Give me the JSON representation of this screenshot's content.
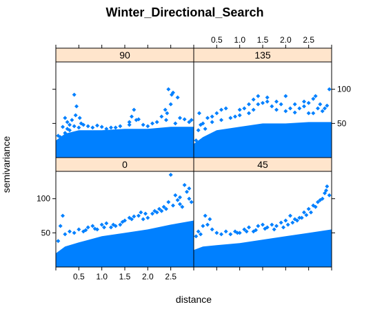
{
  "chart_data": {
    "type": "scatter",
    "title": "Winter_Directional_Search",
    "xlabel": "distance",
    "ylabel": "semivariance",
    "xlim": [
      0,
      3.0
    ],
    "ylim": [
      0,
      140
    ],
    "x_ticks": [
      0.5,
      1.0,
      1.5,
      2.0,
      2.5
    ],
    "x_tick_labels": [
      "0.5",
      "1.0",
      "1.5",
      "2.0",
      "2.5"
    ],
    "y_ticks": [
      50,
      100
    ],
    "y_tick_labels": [
      "50",
      "100"
    ],
    "layout": "2x2 panels",
    "point_color": "#0080ff",
    "strip_color": "#ffe5cc",
    "panels": [
      {
        "name": "90",
        "points": [
          [
            0.1,
            30
          ],
          [
            0.2,
            36
          ],
          [
            0.3,
            40
          ],
          [
            0.4,
            46
          ],
          [
            0.5,
            44
          ],
          [
            0.4,
            92
          ],
          [
            0.45,
            75
          ],
          [
            0.43,
            62
          ],
          [
            0.52,
            58
          ],
          [
            0.3,
            48
          ],
          [
            0.2,
            58
          ],
          [
            0.25,
            52
          ],
          [
            0.35,
            55
          ],
          [
            0.6,
            48
          ],
          [
            0.7,
            46
          ],
          [
            0.8,
            44
          ],
          [
            0.9,
            47
          ],
          [
            1.0,
            45
          ],
          [
            1.2,
            44
          ],
          [
            1.4,
            46
          ],
          [
            1.6,
            48
          ],
          [
            1.75,
            55
          ],
          [
            1.7,
            70
          ],
          [
            1.65,
            60
          ],
          [
            1.8,
            56
          ],
          [
            1.6,
            52
          ],
          [
            1.9,
            48
          ],
          [
            2.0,
            46
          ],
          [
            2.2,
            52
          ],
          [
            2.4,
            55
          ],
          [
            2.3,
            60
          ],
          [
            2.6,
            50
          ],
          [
            2.7,
            58
          ],
          [
            2.8,
            56
          ],
          [
            2.9,
            52
          ],
          [
            2.95,
            55
          ],
          [
            2.45,
            100
          ],
          [
            2.55,
            95
          ],
          [
            2.65,
            88
          ],
          [
            2.52,
            92
          ],
          [
            2.5,
            78
          ],
          [
            2.38,
            70
          ],
          [
            2.42,
            65
          ],
          [
            2.1,
            50
          ],
          [
            1.3,
            44
          ],
          [
            0.15,
            45
          ],
          [
            0.05,
            32
          ],
          [
            0.25,
            42
          ],
          [
            0.55,
            50
          ],
          [
            1.1,
            42
          ]
        ],
        "fill_band": [
          [
            0.0,
            0,
            25
          ],
          [
            0.2,
            0,
            35
          ],
          [
            0.5,
            0,
            40
          ],
          [
            1.0,
            0,
            40
          ],
          [
            1.5,
            0,
            42
          ],
          [
            2.0,
            0,
            42
          ],
          [
            2.5,
            0,
            45
          ],
          [
            3.0,
            0,
            45
          ]
        ]
      },
      {
        "name": "135",
        "points": [
          [
            0.05,
            25
          ],
          [
            0.1,
            40
          ],
          [
            0.12,
            65
          ],
          [
            0.2,
            50
          ],
          [
            0.3,
            58
          ],
          [
            0.4,
            60
          ],
          [
            0.5,
            65
          ],
          [
            0.6,
            70
          ],
          [
            0.7,
            72
          ],
          [
            0.9,
            60
          ],
          [
            1.0,
            70
          ],
          [
            1.1,
            72
          ],
          [
            1.2,
            78
          ],
          [
            1.3,
            85
          ],
          [
            1.4,
            90
          ],
          [
            1.5,
            80
          ],
          [
            1.6,
            82
          ],
          [
            1.7,
            75
          ],
          [
            1.8,
            70
          ],
          [
            1.9,
            78
          ],
          [
            2.0,
            68
          ],
          [
            2.1,
            72
          ],
          [
            2.2,
            66
          ],
          [
            2.3,
            72
          ],
          [
            2.4,
            75
          ],
          [
            2.5,
            80
          ],
          [
            2.6,
            86
          ],
          [
            2.65,
            90
          ],
          [
            2.7,
            72
          ],
          [
            2.75,
            78
          ],
          [
            2.8,
            68
          ],
          [
            2.85,
            72
          ],
          [
            2.95,
            100
          ],
          [
            2.9,
            76
          ],
          [
            2.6,
            65
          ],
          [
            2.4,
            82
          ],
          [
            2.2,
            78
          ],
          [
            2.0,
            90
          ],
          [
            1.8,
            82
          ],
          [
            1.6,
            88
          ],
          [
            1.4,
            78
          ],
          [
            1.2,
            65
          ],
          [
            1.0,
            62
          ],
          [
            0.8,
            58
          ],
          [
            0.6,
            55
          ],
          [
            0.4,
            52
          ],
          [
            0.25,
            42
          ],
          [
            0.15,
            48
          ],
          [
            2.5,
            65
          ],
          [
            1.3,
            70
          ]
        ],
        "fill_band": [
          [
            0.0,
            0,
            20
          ],
          [
            0.2,
            0,
            30
          ],
          [
            0.5,
            0,
            40
          ],
          [
            1.0,
            0,
            45
          ],
          [
            1.5,
            0,
            50
          ],
          [
            2.0,
            0,
            50
          ],
          [
            2.5,
            0,
            52
          ],
          [
            3.0,
            0,
            52
          ]
        ]
      },
      {
        "name": "0",
        "points": [
          [
            0.05,
            38
          ],
          [
            0.1,
            60
          ],
          [
            0.15,
            75
          ],
          [
            0.2,
            48
          ],
          [
            0.3,
            52
          ],
          [
            0.4,
            50
          ],
          [
            0.5,
            55
          ],
          [
            0.6,
            52
          ],
          [
            0.7,
            58
          ],
          [
            0.8,
            60
          ],
          [
            0.9,
            55
          ],
          [
            1.0,
            62
          ],
          [
            1.1,
            64
          ],
          [
            1.2,
            58
          ],
          [
            1.3,
            60
          ],
          [
            1.4,
            62
          ],
          [
            1.5,
            68
          ],
          [
            1.6,
            72
          ],
          [
            1.7,
            74
          ],
          [
            1.8,
            75
          ],
          [
            1.9,
            70
          ],
          [
            2.0,
            72
          ],
          [
            2.1,
            78
          ],
          [
            2.2,
            80
          ],
          [
            2.3,
            82
          ],
          [
            2.4,
            85
          ],
          [
            2.5,
            135
          ],
          [
            2.6,
            105
          ],
          [
            2.7,
            92
          ],
          [
            2.8,
            120
          ],
          [
            2.85,
            110
          ],
          [
            2.9,
            100
          ],
          [
            2.95,
            95
          ],
          [
            2.75,
            88
          ],
          [
            2.65,
            98
          ],
          [
            2.55,
            90
          ],
          [
            2.45,
            95
          ],
          [
            2.35,
            88
          ],
          [
            2.25,
            85
          ],
          [
            2.15,
            82
          ],
          [
            1.95,
            78
          ],
          [
            1.85,
            80
          ],
          [
            1.65,
            70
          ],
          [
            1.45,
            66
          ],
          [
            1.25,
            62
          ],
          [
            1.05,
            58
          ],
          [
            0.85,
            56
          ],
          [
            0.65,
            54
          ],
          [
            2.9,
            115
          ],
          [
            2.7,
            102
          ]
        ],
        "fill_band": [
          [
            0.0,
            0,
            20
          ],
          [
            0.2,
            0,
            30
          ],
          [
            0.5,
            0,
            36
          ],
          [
            1.0,
            0,
            45
          ],
          [
            1.5,
            0,
            50
          ],
          [
            2.0,
            0,
            55
          ],
          [
            2.5,
            0,
            62
          ],
          [
            3.0,
            0,
            68
          ]
        ]
      },
      {
        "name": "45",
        "points": [
          [
            0.05,
            45
          ],
          [
            0.1,
            52
          ],
          [
            0.15,
            48
          ],
          [
            0.2,
            60
          ],
          [
            0.3,
            62
          ],
          [
            0.4,
            55
          ],
          [
            0.5,
            50
          ],
          [
            0.6,
            48
          ],
          [
            0.7,
            52
          ],
          [
            0.8,
            48
          ],
          [
            0.9,
            52
          ],
          [
            1.0,
            50
          ],
          [
            1.1,
            55
          ],
          [
            1.2,
            58
          ],
          [
            1.3,
            52
          ],
          [
            1.4,
            60
          ],
          [
            1.5,
            62
          ],
          [
            1.6,
            58
          ],
          [
            1.7,
            62
          ],
          [
            1.8,
            60
          ],
          [
            1.9,
            65
          ],
          [
            2.0,
            68
          ],
          [
            2.1,
            75
          ],
          [
            2.2,
            70
          ],
          [
            2.3,
            72
          ],
          [
            2.4,
            80
          ],
          [
            2.5,
            85
          ],
          [
            2.6,
            90
          ],
          [
            2.7,
            95
          ],
          [
            2.8,
            100
          ],
          [
            2.85,
            108
          ],
          [
            2.9,
            118
          ],
          [
            2.95,
            105
          ],
          [
            2.75,
            98
          ],
          [
            2.65,
            88
          ],
          [
            2.55,
            80
          ],
          [
            2.45,
            76
          ],
          [
            2.35,
            72
          ],
          [
            2.25,
            68
          ],
          [
            2.15,
            65
          ],
          [
            2.05,
            62
          ],
          [
            1.95,
            58
          ],
          [
            1.75,
            55
          ],
          [
            1.55,
            56
          ],
          [
            1.35,
            54
          ],
          [
            1.15,
            52
          ],
          [
            0.95,
            50
          ],
          [
            0.25,
            75
          ],
          [
            0.35,
            70
          ],
          [
            2.88,
            112
          ]
        ],
        "fill_band": [
          [
            0.0,
            0,
            25
          ],
          [
            0.2,
            0,
            30
          ],
          [
            0.5,
            0,
            32
          ],
          [
            1.0,
            0,
            35
          ],
          [
            1.5,
            0,
            40
          ],
          [
            2.0,
            0,
            45
          ],
          [
            2.5,
            0,
            50
          ],
          [
            3.0,
            0,
            55
          ]
        ]
      }
    ]
  }
}
